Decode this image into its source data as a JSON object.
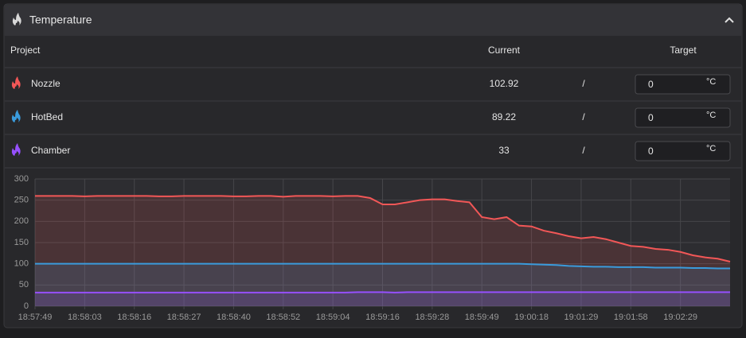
{
  "header": {
    "title": "Temperature"
  },
  "table": {
    "columns": [
      "Project",
      "Current",
      "Target"
    ],
    "rows": [
      {
        "name": "Nozzle",
        "current": 102.92,
        "separator": "/",
        "target": 0,
        "unit": "°C"
      },
      {
        "name": "HotBed",
        "current": 89.22,
        "separator": "/",
        "target": 0,
        "unit": "°C"
      },
      {
        "name": "Chamber",
        "current": 33,
        "separator": "/",
        "target": 0,
        "unit": "°C"
      }
    ]
  },
  "chart_data": {
    "type": "line",
    "categories": [
      "18:57:49",
      null,
      null,
      null,
      "18:58:03",
      null,
      null,
      null,
      "18:58:16",
      null,
      null,
      null,
      "18:58:27",
      null,
      null,
      null,
      "18:58:40",
      null,
      null,
      null,
      "18:58:52",
      null,
      null,
      null,
      "18:59:04",
      null,
      null,
      null,
      "18:59:16",
      null,
      null,
      null,
      "18:59:28",
      null,
      null,
      null,
      "18:59:49",
      null,
      null,
      null,
      "19:00:18",
      null,
      null,
      null,
      "19:01:29",
      null,
      null,
      null,
      "19:01:58",
      null,
      null,
      null,
      "19:02:29",
      null,
      null,
      null,
      null
    ],
    "series": [
      {
        "name": "Nozzle",
        "color": "#f25757",
        "values": [
          260,
          260,
          260,
          260,
          259,
          260,
          260,
          260,
          260,
          260,
          259,
          259,
          260,
          260,
          260,
          260,
          259,
          259,
          260,
          260,
          258,
          260,
          260,
          260,
          259,
          260,
          260,
          255,
          240,
          240,
          245,
          250,
          252,
          252,
          248,
          245,
          210,
          205,
          210,
          190,
          188,
          178,
          172,
          165,
          160,
          163,
          158,
          150,
          142,
          140,
          135,
          133,
          128,
          120,
          115,
          112,
          105
        ]
      },
      {
        "name": "HotBed",
        "color": "#3a9bdc",
        "values": [
          100,
          100,
          100,
          100,
          100,
          100,
          100,
          100,
          100,
          100,
          100,
          100,
          100,
          100,
          100,
          100,
          100,
          100,
          100,
          100,
          100,
          100,
          100,
          100,
          100,
          100,
          100,
          100,
          100,
          100,
          100,
          100,
          100,
          100,
          100,
          100,
          100,
          100,
          100,
          100,
          99,
          98,
          97,
          95,
          94,
          93,
          93,
          92,
          92,
          92,
          91,
          91,
          91,
          90,
          90,
          89,
          89
        ]
      },
      {
        "name": "Chamber",
        "color": "#9650ff",
        "values": [
          32,
          32,
          32,
          32,
          32,
          32,
          32,
          32,
          32,
          32,
          32,
          32,
          32,
          32,
          32,
          32,
          32,
          32,
          32,
          32,
          32,
          32,
          32,
          32,
          32,
          32,
          33,
          33,
          33,
          32,
          33,
          33,
          33,
          33,
          33,
          33,
          33,
          33,
          33,
          33,
          33,
          33,
          33,
          33,
          33,
          33,
          33,
          33,
          33,
          33,
          33,
          33,
          33,
          33,
          33,
          33,
          33
        ]
      }
    ],
    "ylim": [
      0,
      300
    ],
    "yticks": [
      0,
      50,
      100,
      150,
      200,
      250,
      300
    ],
    "grid": true,
    "area": true
  }
}
